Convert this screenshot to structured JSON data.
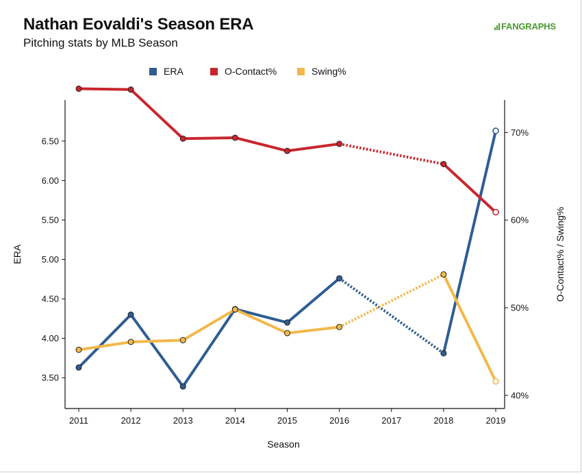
{
  "title": "Nathan Eovaldi's Season ERA",
  "subtitle": "Pitching stats by MLB Season",
  "logo_text": "FANGRAPHS",
  "chart_data": {
    "type": "line",
    "title": "Nathan Eovaldi's Season ERA",
    "subtitle": "Pitching stats by MLB Season",
    "xlabel": "Season",
    "ylabel": "ERA",
    "y2label": "O-Contact% / Swing%",
    "x_ticks": [
      "2011",
      "2012",
      "2013",
      "2014",
      "2015",
      "2016",
      "2017",
      "2018",
      "2019"
    ],
    "xlim": [
      2011,
      2019
    ],
    "ylim": [
      3.11,
      7.02
    ],
    "y_ticks": [
      "3.50",
      "4.00",
      "4.50",
      "5.00",
      "5.50",
      "6.00",
      "6.50"
    ],
    "y2lim": [
      0.385,
      0.737
    ],
    "y2_ticks": [
      "40%",
      "50%",
      "60%",
      "70%"
    ],
    "grid": false,
    "legend": "top",
    "gap_style": "dotted line spans the missing 2017 season",
    "series": [
      {
        "name": "ERA",
        "axis": "left",
        "color": "#2f5d93",
        "x": [
          2011,
          2012,
          2013,
          2014,
          2015,
          2016,
          2018,
          2019
        ],
        "values": [
          3.63,
          4.3,
          3.39,
          4.37,
          4.2,
          4.76,
          3.81,
          6.63
        ]
      },
      {
        "name": "O-Contact%",
        "axis": "right",
        "color": "#c8262e",
        "x": [
          2011,
          2012,
          2013,
          2014,
          2015,
          2016,
          2018,
          2019
        ],
        "values": [
          0.75,
          0.749,
          0.693,
          0.694,
          0.679,
          0.687,
          0.664,
          0.609
        ]
      },
      {
        "name": "Swing%",
        "axis": "right",
        "color": "#f2b84b",
        "x": [
          2011,
          2012,
          2013,
          2014,
          2015,
          2016,
          2018,
          2019
        ],
        "values": [
          0.452,
          0.461,
          0.463,
          0.498,
          0.471,
          0.478,
          0.538,
          0.416
        ]
      }
    ]
  }
}
